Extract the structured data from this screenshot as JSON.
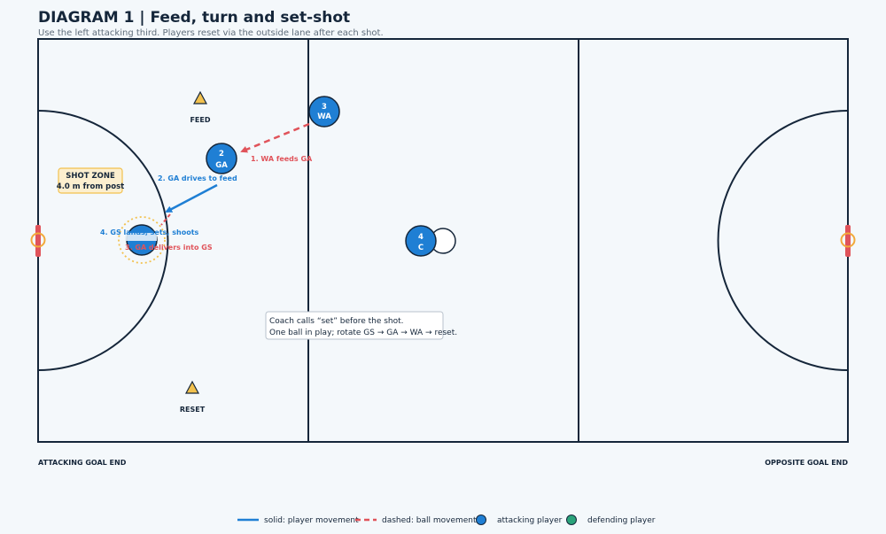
{
  "title": "DIAGRAM 1 | Feed, turn and set-shot",
  "subtitle": "Use the left attacking third. Players reset via the outside lane after each shot.",
  "cones": [
    {
      "label": "FEED"
    },
    {
      "label": "RESET"
    }
  ],
  "players": [
    {
      "number": "3",
      "position": "WA"
    },
    {
      "number": "2",
      "position": "GA"
    },
    {
      "number": "4",
      "position": "C"
    }
  ],
  "annotations": {
    "wa_feeds": "1. WA feeds GA",
    "ga_drives": "2. GA drives to feed",
    "gs_lands": "4. GS lands, sets, shoots",
    "ga_delivers": "3. GA delivers into GS"
  },
  "shot_zone": {
    "line1": "SHOT ZONE",
    "line2": "4.0 m from post"
  },
  "coach_note": {
    "line1": "Coach calls “set” before the shot.",
    "line2": "One ball in play; rotate GS → GA → WA → reset."
  },
  "end_labels": {
    "left": "ATTACKING GOAL END",
    "right": "OPPOSITE GOAL END"
  },
  "legend": {
    "solid": "solid: player movement",
    "dashed": "dashed: ball movement",
    "attacking": "attacking player",
    "defending": "defending player"
  },
  "colors": {
    "court_line": "#15263a",
    "attacking_player": "#1f7fd4",
    "defending_player": "#2aa37a",
    "ball_movement": "#e0535a",
    "player_movement": "#1f7fd4",
    "cone": "#f2c14e",
    "goal_post": "#f2a93b"
  }
}
